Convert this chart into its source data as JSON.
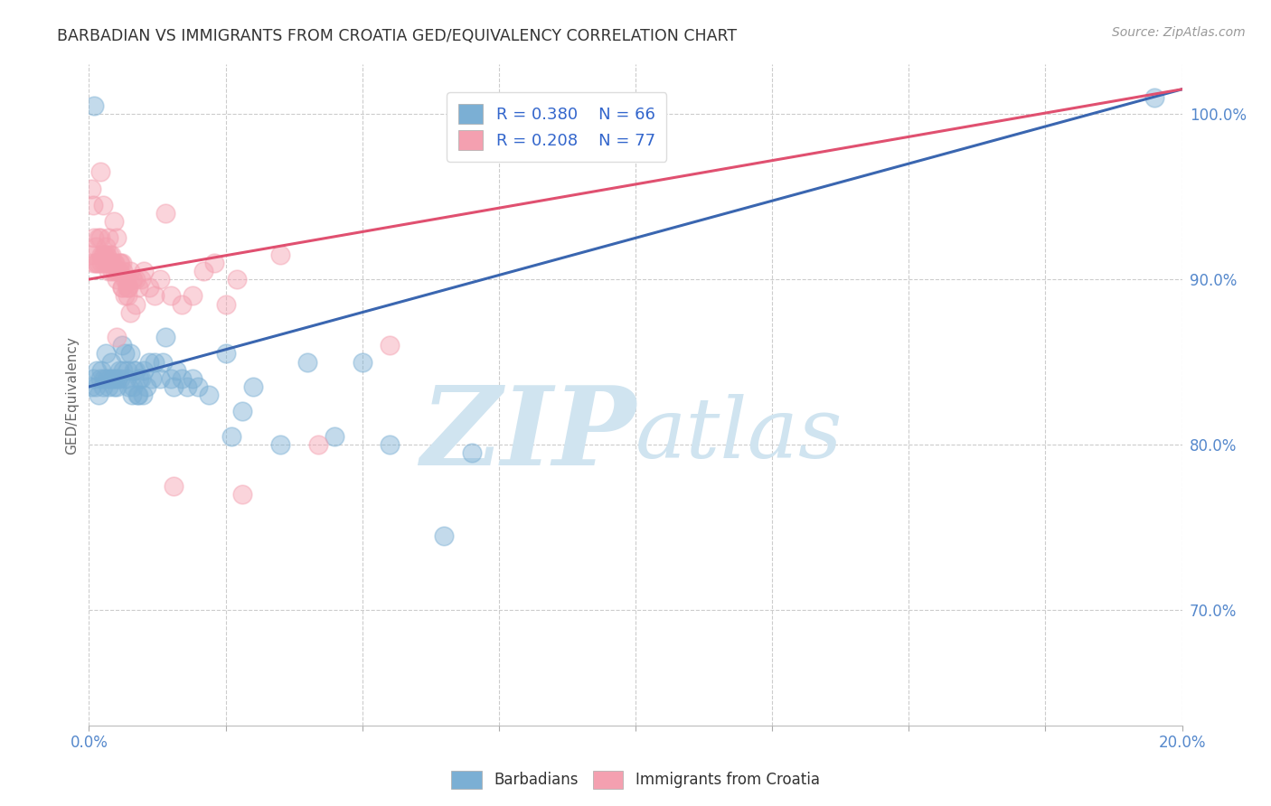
{
  "title": "BARBADIAN VS IMMIGRANTS FROM CROATIA GED/EQUIVALENCY CORRELATION CHART",
  "source": "Source: ZipAtlas.com",
  "ylabel": "GED/Equivalency",
  "xlim": [
    0.0,
    20.0
  ],
  "ylim": [
    63.0,
    103.0
  ],
  "yticks": [
    70.0,
    80.0,
    90.0,
    100.0
  ],
  "xtick_positions": [
    0.0,
    2.5,
    5.0,
    7.5,
    10.0,
    12.5,
    15.0,
    17.5,
    20.0
  ],
  "legend_blue_label": "R = 0.380    N = 66",
  "legend_pink_label": "R = 0.208    N = 77",
  "dot_color_blue": "#7BAFD4",
  "dot_color_pink": "#F4A0B0",
  "line_color_blue": "#3A66B0",
  "line_color_pink": "#E05070",
  "watermark_zip": "ZIP",
  "watermark_atlas": "atlas",
  "watermark_color": "#D0E4F0",
  "background_color": "#FFFFFF",
  "grid_color": "#CCCCCC",
  "title_color": "#333333",
  "axis_label_color": "#5588CC",
  "legend_R_color": "#3366CC",
  "blue_trend_x0": 0.0,
  "blue_trend_x1": 20.0,
  "blue_trend_y0": 83.5,
  "blue_trend_y1": 101.5,
  "pink_trend_x0": 0.0,
  "pink_trend_x1": 20.0,
  "pink_trend_y0": 90.0,
  "pink_trend_y1": 101.5,
  "blue_x": [
    0.05,
    0.08,
    0.1,
    0.12,
    0.15,
    0.18,
    0.2,
    0.22,
    0.25,
    0.28,
    0.3,
    0.32,
    0.35,
    0.38,
    0.4,
    0.42,
    0.45,
    0.48,
    0.5,
    0.52,
    0.55,
    0.58,
    0.6,
    0.62,
    0.65,
    0.68,
    0.7,
    0.72,
    0.75,
    0.78,
    0.8,
    0.82,
    0.85,
    0.88,
    0.9,
    0.92,
    0.95,
    0.98,
    1.0,
    1.05,
    1.1,
    1.15,
    1.2,
    1.3,
    1.4,
    1.5,
    1.6,
    1.7,
    1.8,
    1.9,
    2.0,
    2.2,
    2.5,
    2.8,
    3.0,
    3.5,
    4.0,
    4.5,
    5.0,
    5.5,
    6.5,
    7.0,
    2.6,
    19.5,
    1.35,
    1.55
  ],
  "blue_y": [
    83.5,
    84.0,
    100.5,
    83.5,
    84.5,
    83.0,
    84.0,
    84.5,
    83.5,
    84.0,
    85.5,
    84.0,
    83.5,
    84.0,
    85.0,
    84.0,
    83.5,
    84.0,
    83.5,
    84.0,
    84.5,
    84.0,
    86.0,
    84.5,
    85.5,
    84.0,
    84.5,
    83.5,
    85.5,
    83.0,
    83.5,
    84.5,
    84.5,
    83.0,
    83.0,
    84.0,
    84.0,
    83.0,
    84.5,
    83.5,
    85.0,
    84.0,
    85.0,
    84.0,
    86.5,
    84.0,
    84.5,
    84.0,
    83.5,
    84.0,
    83.5,
    83.0,
    85.5,
    82.0,
    83.5,
    80.0,
    85.0,
    80.5,
    85.0,
    80.0,
    74.5,
    79.5,
    80.5,
    101.0,
    85.0,
    83.5
  ],
  "pink_x": [
    0.03,
    0.05,
    0.07,
    0.08,
    0.1,
    0.12,
    0.13,
    0.15,
    0.17,
    0.18,
    0.2,
    0.22,
    0.23,
    0.25,
    0.27,
    0.28,
    0.3,
    0.32,
    0.33,
    0.35,
    0.37,
    0.38,
    0.4,
    0.42,
    0.43,
    0.45,
    0.47,
    0.48,
    0.5,
    0.52,
    0.55,
    0.58,
    0.6,
    0.62,
    0.65,
    0.68,
    0.7,
    0.72,
    0.75,
    0.78,
    0.8,
    0.85,
    0.9,
    0.95,
    1.0,
    1.1,
    1.2,
    1.3,
    1.5,
    1.7,
    1.9,
    2.1,
    2.3,
    2.5,
    2.7,
    0.25,
    0.35,
    0.45,
    0.6,
    0.7,
    0.5,
    1.4,
    3.5,
    0.2,
    0.55,
    0.65,
    0.75,
    0.85,
    1.55,
    2.8,
    4.2,
    5.5,
    0.3,
    0.4,
    0.5,
    0.6,
    0.7
  ],
  "pink_y": [
    91.5,
    95.5,
    91.0,
    94.5,
    92.5,
    91.0,
    92.0,
    91.0,
    92.5,
    91.0,
    92.5,
    91.5,
    91.0,
    94.5,
    91.0,
    91.5,
    91.5,
    91.0,
    91.5,
    90.5,
    91.0,
    91.5,
    91.0,
    90.5,
    91.0,
    91.0,
    90.5,
    91.0,
    90.0,
    90.5,
    90.5,
    91.0,
    89.5,
    90.5,
    90.0,
    90.0,
    89.5,
    89.5,
    90.5,
    90.0,
    90.0,
    90.0,
    89.5,
    90.0,
    90.5,
    89.5,
    89.0,
    90.0,
    89.0,
    88.5,
    89.0,
    90.5,
    91.0,
    88.5,
    90.0,
    91.5,
    92.5,
    93.5,
    89.5,
    89.0,
    86.5,
    94.0,
    91.5,
    96.5,
    91.0,
    89.0,
    88.0,
    88.5,
    77.5,
    77.0,
    80.0,
    86.0,
    92.0,
    91.5,
    92.5,
    91.0,
    89.5
  ]
}
